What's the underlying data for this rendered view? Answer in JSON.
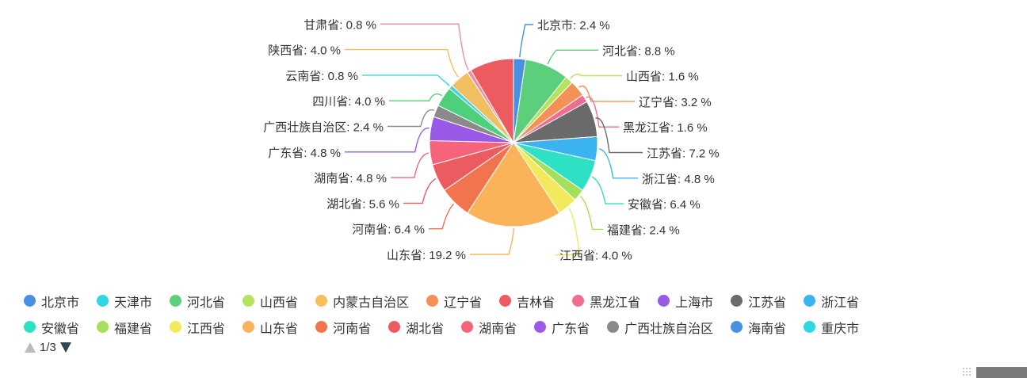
{
  "chart_data": {
    "type": "pie",
    "value_suffix": " %",
    "slices": [
      {
        "name": "北京市",
        "value": 2.4,
        "color": "#4a90e2"
      },
      {
        "name": "河北省",
        "value": 8.8,
        "color": "#5ccf7c"
      },
      {
        "name": "山西省",
        "value": 1.6,
        "color": "#b5e35c"
      },
      {
        "name": "辽宁省",
        "value": 3.2,
        "color": "#f59056"
      },
      {
        "name": "黑龙江省",
        "value": 1.6,
        "color": "#ef6d8f"
      },
      {
        "name": "江苏省",
        "value": 7.2,
        "color": "#6b6b6b"
      },
      {
        "name": "浙江省",
        "value": 4.8,
        "color": "#3bb3f0"
      },
      {
        "name": "安徽省",
        "value": 6.4,
        "color": "#2ee0c4"
      },
      {
        "name": "福建省",
        "value": 2.4,
        "color": "#a6e05a"
      },
      {
        "name": "江西省",
        "value": 4.0,
        "color": "#f2ea5c"
      },
      {
        "name": "山东省",
        "value": 19.2,
        "color": "#fbb35a"
      },
      {
        "name": "河南省",
        "value": 6.4,
        "color": "#f2744f"
      },
      {
        "name": "湖北省",
        "value": 5.6,
        "color": "#ec5b60"
      },
      {
        "name": "湖南省",
        "value": 4.8,
        "color": "#f5647a"
      },
      {
        "name": "广东省",
        "value": 4.8,
        "color": "#9b59e8"
      },
      {
        "name": "广西壮族自治区",
        "value": 2.4,
        "color": "#8a8a8a"
      },
      {
        "name": "四川省",
        "value": 4.0,
        "color": "#4ecf7a"
      },
      {
        "name": "云南省",
        "value": 0.8,
        "color": "#3ad6e0"
      },
      {
        "name": "陕西省",
        "value": 4.0,
        "color": "#f0c060"
      },
      {
        "name": "甘肃省",
        "value": 0.8,
        "color": "#f08ba0"
      },
      {
        "name": "",
        "value": 8.8,
        "color": "#ec5b60"
      }
    ]
  },
  "legend": {
    "items": [
      {
        "label": "北京市",
        "color": "#4a90e2"
      },
      {
        "label": "天津市",
        "color": "#2fd6e6"
      },
      {
        "label": "河北省",
        "color": "#5ccf7c"
      },
      {
        "label": "山西省",
        "color": "#b5e35c"
      },
      {
        "label": "内蒙古自治区",
        "color": "#fbbf5a"
      },
      {
        "label": "辽宁省",
        "color": "#f59056"
      },
      {
        "label": "吉林省",
        "color": "#ec5b60"
      },
      {
        "label": "黑龙江省",
        "color": "#ef6d8f"
      },
      {
        "label": "上海市",
        "color": "#9b59e8"
      },
      {
        "label": "江苏省",
        "color": "#6b6b6b"
      },
      {
        "label": "浙江省",
        "color": "#3bb3f0"
      },
      {
        "label": "安徽省",
        "color": "#2ee0c4"
      },
      {
        "label": "福建省",
        "color": "#a6e05a"
      },
      {
        "label": "江西省",
        "color": "#f2ea5c"
      },
      {
        "label": "山东省",
        "color": "#fbb35a"
      },
      {
        "label": "河南省",
        "color": "#f2744f"
      },
      {
        "label": "湖北省",
        "color": "#ec5b60"
      },
      {
        "label": "湖南省",
        "color": "#f5647a"
      },
      {
        "label": "广东省",
        "color": "#9b59e8"
      },
      {
        "label": "广西壮族自治区",
        "color": "#8a8a8a"
      },
      {
        "label": "海南省",
        "color": "#4a90e2"
      },
      {
        "label": "重庆市",
        "color": "#2fd6e6"
      }
    ],
    "pager": "1/3"
  }
}
